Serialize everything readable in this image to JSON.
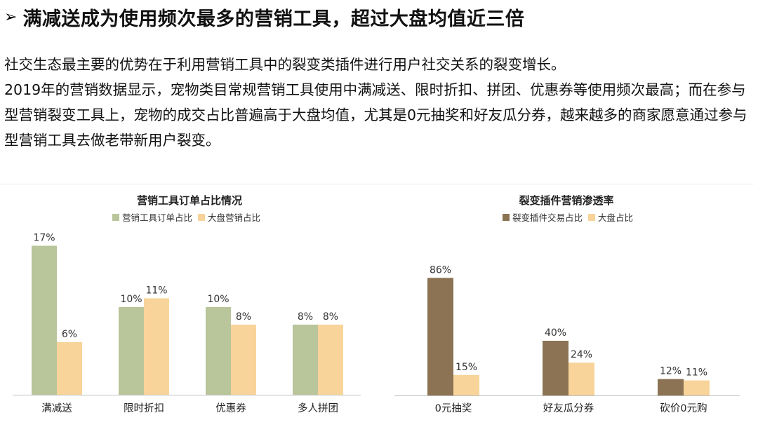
{
  "header": {
    "arrow_glyph": "➢",
    "title": "满减送成为使用频次最多的营销工具，超过大盘均值近三倍"
  },
  "body_text": {
    "paragraph_1": "社交生态最主要的优势在于利用营销工具中的裂变类插件进行用户社交关系的裂变增长。",
    "paragraph_2": "2019年的营销数据显示，宠物类目常规营销工具使用中满减送、限时折扣、拼团、优惠券等使用频次最高；而在参与型营销裂变工具上，宠物的成交占比普遍高于大盘均值，尤其是0元抽奖和好友瓜分券，越来越多的商家愿意通过参与型营销工具去做老带新用户裂变。"
  },
  "colors": {
    "left_primary": "#b9c59a",
    "left_secondary": "#f8d49a",
    "right_primary": "#8b7354",
    "right_secondary": "#f8d49a",
    "axis": "#bfbfbf"
  },
  "chart_data": [
    {
      "type": "bar",
      "title": "营销工具订单占比情况",
      "categories": [
        "满减送",
        "限时折扣",
        "优惠券",
        "多人拼团"
      ],
      "series": [
        {
          "name": "营销工具订单占比",
          "values": [
            17,
            10,
            10,
            8
          ],
          "labels": [
            "17%",
            "10%",
            "10%",
            "8%"
          ]
        },
        {
          "name": "大盘营销占比",
          "values": [
            6,
            11,
            8,
            8
          ],
          "labels": [
            "6%",
            "11%",
            "8%",
            "8%"
          ]
        }
      ],
      "legend": "top-center",
      "grid": false,
      "ylim": [
        0,
        18
      ]
    },
    {
      "type": "bar",
      "title": "裂变插件营销渗透率",
      "categories": [
        "0元抽奖",
        "好友瓜分券",
        "砍价0元购"
      ],
      "series": [
        {
          "name": "裂变插件交易占比",
          "values": [
            86,
            40,
            12
          ],
          "labels": [
            "86%",
            "40%",
            "12%"
          ]
        },
        {
          "name": "大盘占比",
          "values": [
            15,
            24,
            11
          ],
          "labels": [
            "15%",
            "24%",
            "11%"
          ]
        }
      ],
      "legend": "top-center",
      "grid": false,
      "ylim": [
        0,
        95
      ]
    }
  ]
}
